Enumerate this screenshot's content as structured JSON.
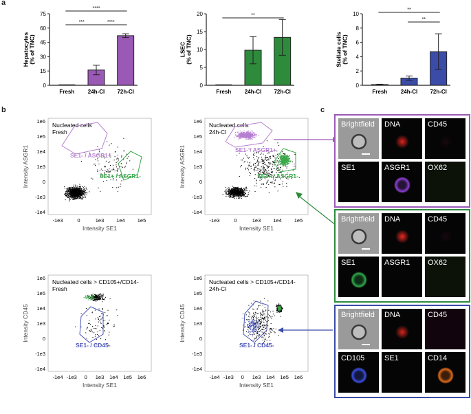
{
  "figure": {
    "panel_a": "a",
    "panel_b": "b",
    "panel_c": "c"
  },
  "colors": {
    "purple": "#9b59b6",
    "green": "#2e8b3c",
    "blue": "#3a4ba8",
    "gate_purple": "#b57fd0",
    "gate_green": "#3aa84a",
    "gate_blue": "#4a56b8"
  },
  "chart_data": [
    {
      "type": "bar",
      "ylabel": "Hepatocytes\n(% of TNC)",
      "categories": [
        "Fresh",
        "24h-CI",
        "72h-CI"
      ],
      "values": [
        0,
        16,
        52
      ],
      "errors": [
        0,
        5,
        2
      ],
      "ylim": [
        0,
        75
      ],
      "yticks": [
        "0",
        "15",
        "30",
        "45",
        "60",
        "75"
      ],
      "color": "#9b59b6",
      "significance": [
        "****",
        "***",
        "****"
      ]
    },
    {
      "type": "bar",
      "ylabel": "LSEC\n(% of TNC)",
      "categories": [
        "Fresh",
        "24h-CI",
        "72h-CI"
      ],
      "values": [
        0,
        9.8,
        13.4
      ],
      "errors": [
        0,
        3.8,
        5.0
      ],
      "ylim": [
        0,
        20
      ],
      "yticks": [
        "0",
        "5",
        "10",
        "15",
        "20"
      ],
      "color": "#2e8b3c",
      "significance": [
        "**"
      ]
    },
    {
      "type": "bar",
      "ylabel": "Stellate cells\n(% of TNC)",
      "categories": [
        "Fresh",
        "24h-CI",
        "72h-CI"
      ],
      "values": [
        0.1,
        1.0,
        4.7
      ],
      "errors": [
        0.05,
        0.3,
        2.5
      ],
      "ylim": [
        0,
        10
      ],
      "yticks": [
        "0",
        "2",
        "4",
        "6",
        "8",
        "10"
      ],
      "color": "#3a4ba8",
      "significance": [
        "**",
        "**"
      ]
    },
    {
      "type": "scatter",
      "title": "Nucleated cells\nFresh",
      "xlabel": "Intensity SE1",
      "ylabel": "Intensity ASGR1",
      "xticks": [
        "-1e3",
        "0",
        "1e3",
        "1e4",
        "1e5"
      ],
      "yticks": [
        "1e6",
        "1e5",
        "1e4",
        "1e3",
        "0",
        "-1e3",
        "-1e4"
      ],
      "gates": [
        "SE1- / ASGR1+",
        "SE1+ / ASGR1-"
      ]
    },
    {
      "type": "scatter",
      "title": "Nucleated cells\n24h-CI",
      "xlabel": "Intensity SE1",
      "ylabel": "Intensity ASGR1",
      "xticks": [
        "-1e3",
        "0",
        "1e3",
        "1e4",
        "1e5"
      ],
      "yticks": [
        "1e6",
        "1e5",
        "1e4",
        "1e3",
        "0",
        "-1e3",
        "-1e4"
      ],
      "gates": [
        "SE1- / ASGR1+",
        "SE1+ / ASGR1-"
      ]
    },
    {
      "type": "scatter",
      "title": "Nucleated cells > CD105+/CD14-\nFresh",
      "xlabel": "Intensity SE1",
      "ylabel": "Intensity CD45",
      "xticks": [
        "-1e4",
        "-1e3",
        "0",
        "1e3",
        "1e4",
        "1e5",
        "1e6"
      ],
      "yticks": [
        "1e6",
        "1e5",
        "1e4",
        "1e3",
        "0",
        "-1e3",
        "-1e4"
      ],
      "gates": [
        "SE1- / CD45-"
      ]
    },
    {
      "type": "scatter",
      "title": "Nucleated cells > CD105+/CD14-\n24h-CI",
      "xlabel": "Intensity SE1",
      "ylabel": "Intensity CD45",
      "xticks": [
        "-1e4",
        "-1e3",
        "0",
        "1e3",
        "1e4",
        "1e5",
        "1e6"
      ],
      "yticks": [
        "1e6",
        "1e5",
        "1e4",
        "1e3",
        "0",
        "-1e3",
        "-1e4"
      ],
      "gates": [
        "SE1- / CD45-"
      ]
    }
  ],
  "image_panels": [
    {
      "tiles": [
        "Brightfield",
        "DNA",
        "CD45",
        "SE1",
        "ASGR1",
        "OX62"
      ]
    },
    {
      "tiles": [
        "Brightfield",
        "DNA",
        "CD45",
        "SE1",
        "ASGR1",
        "OX62"
      ]
    },
    {
      "tiles": [
        "Brightfield",
        "DNA",
        "CD45",
        "CD105",
        "SE1",
        "CD14"
      ]
    }
  ]
}
